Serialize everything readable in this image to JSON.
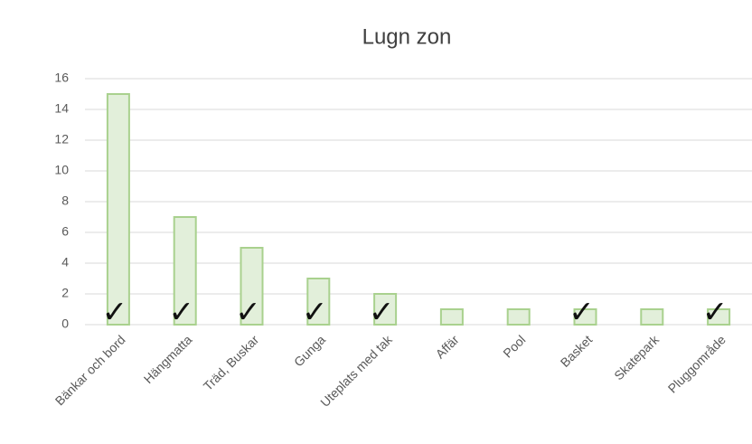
{
  "chart_data": {
    "type": "bar",
    "title": "Lugn zon",
    "categories": [
      "Bänkar och bord",
      "Hängmatta",
      "Träd, Buskar",
      "Gunga",
      "Uteplats med tak",
      "Affär",
      "Pool",
      "Basket",
      "Skatepark",
      "Pluggområde"
    ],
    "values": [
      15,
      7,
      5,
      3,
      2,
      1,
      1,
      1,
      1,
      1
    ],
    "color": "#e2efda",
    "edge_color": "#a9d18e",
    "ylim": [
      0,
      16
    ],
    "yticks": [
      0,
      2,
      4,
      6,
      8,
      10,
      12,
      14,
      16
    ],
    "grid": true,
    "check_label": "✓",
    "checked": [
      true,
      true,
      true,
      true,
      true,
      false,
      false,
      true,
      false,
      true
    ]
  }
}
